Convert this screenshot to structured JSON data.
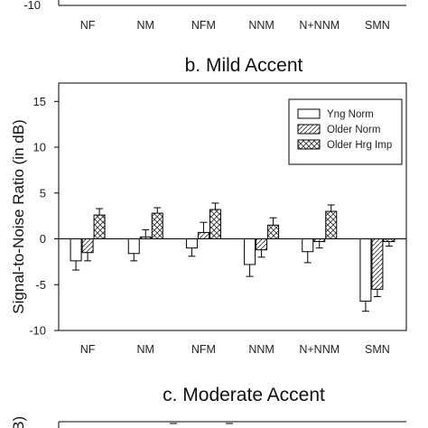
{
  "top_panel": {
    "visible_tick": "-10",
    "categories": [
      "NF",
      "NM",
      "NFM",
      "NNM",
      "N+NNM",
      "SMN"
    ]
  },
  "bottom_panel": {
    "title": "c. Moderate Accent",
    "ylabel_fragment": "dB)"
  },
  "chart_data": {
    "type": "bar",
    "title": "b. Mild Accent",
    "xlabel": "",
    "ylabel": "Signal-to-Noise Ratio (in dB)",
    "ylim": [
      -10,
      17
    ],
    "yticks": [
      -10,
      -5,
      0,
      5,
      10,
      15
    ],
    "tick_labels": [
      "-10",
      "-5",
      "0",
      "5",
      "10",
      "15"
    ],
    "grid": false,
    "legend_position": "top-right",
    "categories": [
      "NF",
      "NM",
      "NFM",
      "NNM",
      "N+NNM",
      "SMN"
    ],
    "series": [
      {
        "name": "Yng Norm",
        "pattern": "empty",
        "values": [
          -2.4,
          -1.6,
          -1.0,
          -2.8,
          -1.4,
          -6.8
        ],
        "errors": [
          1.0,
          0.8,
          0.9,
          1.3,
          1.2,
          1.1
        ]
      },
      {
        "name": "Older Norm",
        "pattern": "diagonal-hatch",
        "values": [
          -1.5,
          0.2,
          0.7,
          -1.2,
          -0.3,
          -5.5
        ],
        "errors": [
          0.9,
          0.8,
          1.1,
          0.8,
          0.7,
          0.8
        ]
      },
      {
        "name": "Older Hrg Imp",
        "pattern": "cross-hatch",
        "values": [
          2.6,
          2.8,
          3.2,
          1.5,
          3.0,
          -0.3
        ],
        "errors": [
          0.7,
          0.6,
          0.7,
          0.8,
          0.7,
          0.5
        ]
      }
    ]
  }
}
